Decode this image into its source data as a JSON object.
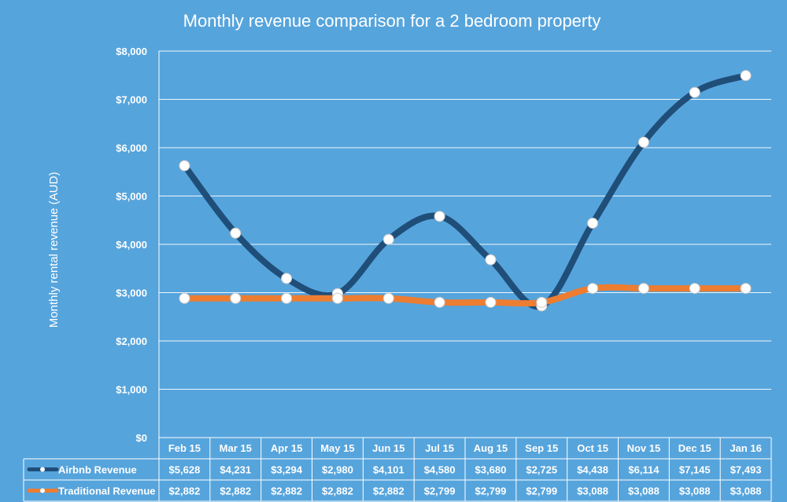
{
  "chart_data": {
    "type": "line",
    "title": "Monthly revenue comparison for a 2 bedroom property",
    "xlabel": "",
    "ylabel": "Monthly rental revenue (AUD)",
    "ylim": [
      0,
      8000
    ],
    "ytick_step": 1000,
    "ytick_labels": [
      "$0",
      "$1,000",
      "$2,000",
      "$3,000",
      "$4,000",
      "$5,000",
      "$6,000",
      "$7,000",
      "$8,000"
    ],
    "grid": true,
    "legend_position": "data-table-left",
    "categories": [
      "Feb 15",
      "Mar 15",
      "Apr 15",
      "May 15",
      "Jun 15",
      "Jul 15",
      "Aug 15",
      "Sep 15",
      "Oct 15",
      "Nov 15",
      "Dec 15",
      "Jan 16"
    ],
    "series": [
      {
        "name": "Airbnb Revenue",
        "color": "#1f4e79",
        "values": [
          5628,
          4231,
          3294,
          2980,
          4101,
          4580,
          3680,
          2725,
          4438,
          6114,
          7145,
          7493
        ],
        "value_labels": [
          "$5,628",
          "$4,231",
          "$3,294",
          "$2,980",
          "$4,101",
          "$4,580",
          "$3,680",
          "$2,725",
          "$4,438",
          "$6,114",
          "$7,145",
          "$7,493"
        ]
      },
      {
        "name": "Traditional Revenue",
        "color": "#ed7d31",
        "values": [
          2882,
          2882,
          2882,
          2882,
          2882,
          2799,
          2799,
          2799,
          3088,
          3088,
          3088,
          3088
        ],
        "value_labels": [
          "$2,882",
          "$2,882",
          "$2,882",
          "$2,882",
          "$2,882",
          "$2,799",
          "$2,799",
          "$2,799",
          "$3,088",
          "$3,088",
          "$3,088",
          "$3,088"
        ]
      }
    ],
    "marker_fill": "#ffffff",
    "gridline_color": "#ffffff"
  }
}
